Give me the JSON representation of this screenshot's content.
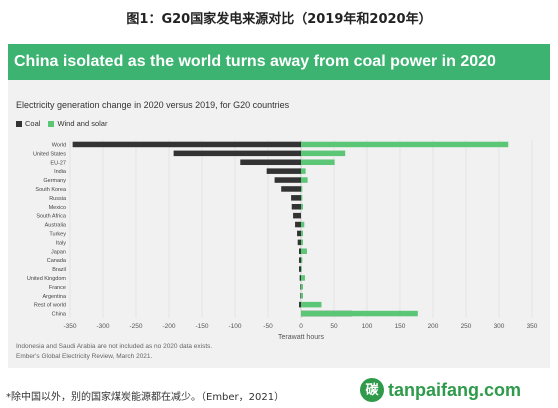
{
  "figure_title": "图1：G20国家发电来源对比（2019年和2020年）",
  "banner_title": "China isolated as the world turns away from coal power in 2020",
  "footnote": "*除中国以外，别的国家煤炭能源都在减少。（Ember，2021）",
  "watermark": {
    "logo": "碳",
    "text": "tanpaifang.com"
  },
  "source_lines": [
    "Indonesia and Saudi Arabia are not included as no 2020 data exists.",
    "Ember's Global Electricity Review, March 2021."
  ],
  "chart_data": {
    "type": "bar",
    "orientation": "horizontal",
    "subtitle": "Electricity generation change in 2020 versus 2019, for G20 countries",
    "xlabel": "Terawatt hours",
    "xlim": [
      -350,
      350
    ],
    "xticks": [
      -350,
      -300,
      -250,
      -200,
      -150,
      -100,
      -50,
      0,
      50,
      100,
      150,
      200,
      250,
      300,
      350
    ],
    "grid": true,
    "legend_position": "top-left",
    "categories": [
      "World",
      "United States",
      "EU-27",
      "India",
      "Germany",
      "South Korea",
      "Russia",
      "Mexico",
      "South Africa",
      "Australia",
      "Turkey",
      "Italy",
      "Japan",
      "Canada",
      "Brazil",
      "United Kingdom",
      "France",
      "Argentina",
      "Rest of world",
      "China"
    ],
    "series": [
      {
        "name": "Coal",
        "color": "#333333",
        "values": [
          -346,
          -193,
          -92,
          -52,
          -40,
          -30,
          -15,
          -14,
          -12,
          -9,
          -6,
          -5,
          -3,
          -3,
          -3,
          -2,
          -1,
          -1,
          -3,
          77
        ]
      },
      {
        "name": "Wind and solar",
        "color": "#5cc677",
        "values": [
          314,
          67,
          51,
          7,
          10,
          2,
          2,
          3,
          0,
          5,
          3,
          3,
          9,
          2,
          1,
          6,
          3,
          3,
          31,
          177
        ]
      }
    ]
  }
}
